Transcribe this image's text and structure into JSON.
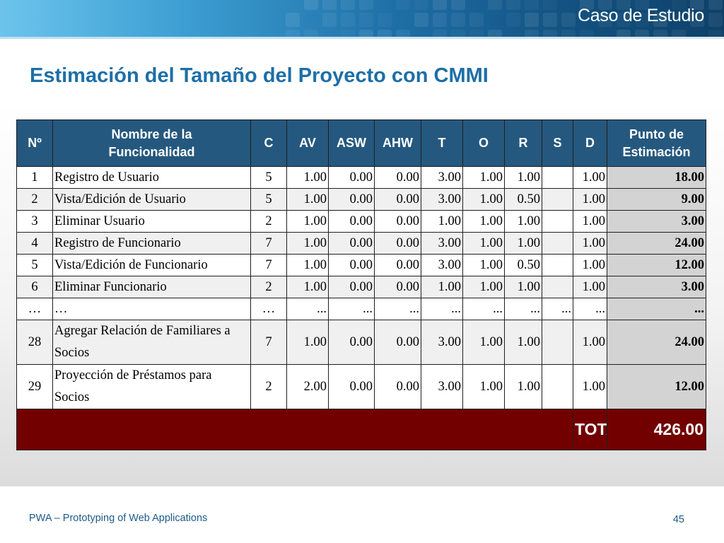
{
  "header": {
    "section_label": "Caso de Estudio",
    "title": "Estimación del Tamaño del Proyecto con CMMI"
  },
  "table": {
    "headers": {
      "no": "Nº",
      "name_line1": "Nombre de la",
      "name_line2": "Funcionalidad",
      "c": "C",
      "av": "AV",
      "asw": "ASW",
      "ahw": "AHW",
      "t": "T",
      "o": "O",
      "r": "R",
      "s": "S",
      "d": "D",
      "score_line1": "Punto de",
      "score_line2": "Estimación"
    },
    "rows": [
      {
        "no": "1",
        "name": "Registro de Usuario",
        "c": "5",
        "av": "1.00",
        "asw": "0.00",
        "ahw": "0.00",
        "t": "3.00",
        "o": "1.00",
        "r": "1.00",
        "s": "",
        "d": "1.00",
        "score": "18.00"
      },
      {
        "no": "2",
        "name": "Vista/Edición de Usuario",
        "c": "5",
        "av": "1.00",
        "asw": "0.00",
        "ahw": "0.00",
        "t": "3.00",
        "o": "1.00",
        "r": "0.50",
        "s": "",
        "d": "1.00",
        "score": "9.00"
      },
      {
        "no": "3",
        "name": "Eliminar Usuario",
        "c": "2",
        "av": "1.00",
        "asw": "0.00",
        "ahw": "0.00",
        "t": "1.00",
        "o": "1.00",
        "r": "1.00",
        "s": "",
        "d": "1.00",
        "score": "3.00"
      },
      {
        "no": "4",
        "name": "Registro de Funcionario",
        "c": "7",
        "av": "1.00",
        "asw": "0.00",
        "ahw": "0.00",
        "t": "3.00",
        "o": "1.00",
        "r": "1.00",
        "s": "",
        "d": "1.00",
        "score": "24.00"
      },
      {
        "no": "5",
        "name": " Vista/Edición de Funcionario",
        "c": "7",
        "av": "1.00",
        "asw": "0.00",
        "ahw": "0.00",
        "t": "3.00",
        "o": "1.00",
        "r": "0.50",
        "s": "",
        "d": "1.00",
        "score": "12.00"
      },
      {
        "no": "6",
        "name": "Eliminar Funcionario",
        "c": "2",
        "av": "1.00",
        "asw": "0.00",
        "ahw": "0.00",
        "t": "1.00",
        "o": "1.00",
        "r": "1.00",
        "s": "",
        "d": "1.00",
        "score": "3.00"
      },
      {
        "no": "…",
        "name": "…",
        "c": "…",
        "av": "...",
        "asw": "...",
        "ahw": "...",
        "t": "...",
        "o": "...",
        "r": "...",
        "s": "...",
        "d": "...",
        "score": "..."
      },
      {
        "no": "28",
        "name": "Agregar Relación de Familiares a Socios",
        "c": "7",
        "av": "1.00",
        "asw": "0.00",
        "ahw": "0.00",
        "t": "3.00",
        "o": "1.00",
        "r": "1.00",
        "s": "",
        "d": "1.00",
        "score": "24.00"
      },
      {
        "no": "29",
        "name": "Proyección de Préstamos para Socios",
        "c": "2",
        "av": "2.00",
        "asw": "0.00",
        "ahw": "0.00",
        "t": "3.00",
        "o": "1.00",
        "r": "1.00",
        "s": "",
        "d": "1.00",
        "score": "12.00"
      }
    ],
    "total_label": "TOTAL:",
    "total_value": "426.00"
  },
  "footer": {
    "text": "PWA – Prototyping of Web Applications",
    "page_number": "45"
  },
  "colors": {
    "header_blue": "#25587e",
    "title_blue": "#1d6fa8",
    "total_red": "#720000"
  }
}
